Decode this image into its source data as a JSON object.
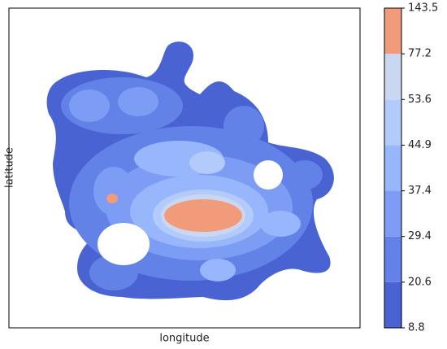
{
  "chart_data": {
    "type": "contour",
    "x_label": "longitude",
    "y_label": "latitude",
    "levels": [
      8.8,
      20.6,
      29.4,
      37.4,
      44.9,
      53.6,
      77.2,
      143.5
    ],
    "colors": [
      "#4a63d3",
      "#6282e8",
      "#7d9cf3",
      "#97b6fb",
      "#b2cbfb",
      "#c9d8f0",
      "#f29b7b"
    ]
  }
}
